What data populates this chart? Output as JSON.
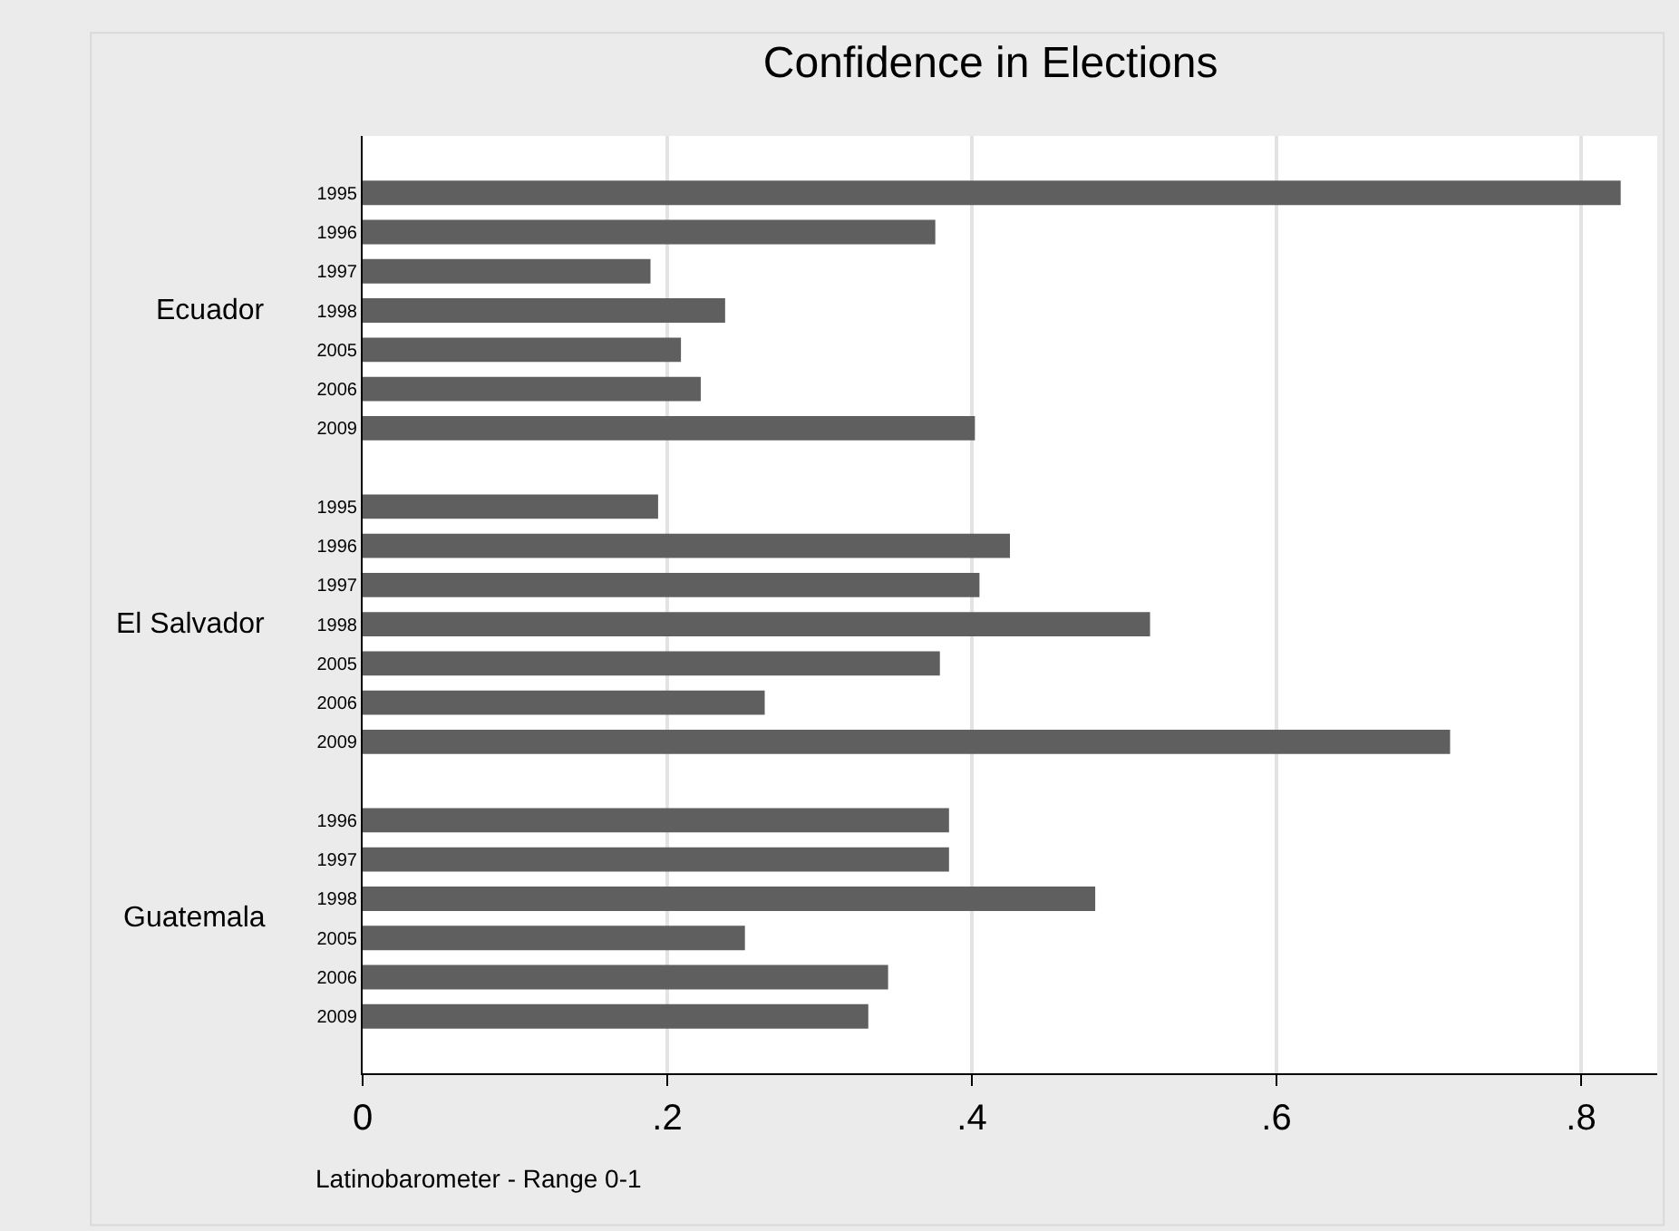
{
  "chart_data": {
    "type": "bar",
    "orientation": "horizontal",
    "title": "Confidence in Elections",
    "xlabel": "Latinobarometer - Range 0-1",
    "categories": [
      "1995",
      "1996",
      "1997",
      "1998",
      "2005",
      "2006",
      "2009",
      null,
      "1995",
      "1996",
      "1997",
      "1998",
      "2005",
      "2006",
      "2009",
      null,
      "1996",
      "1997",
      "1998",
      "2005",
      "2006",
      "2009"
    ],
    "values": [
      0.826,
      0.376,
      0.189,
      0.238,
      0.209,
      0.222,
      0.402,
      null,
      0.194,
      0.425,
      0.405,
      0.517,
      0.379,
      0.264,
      0.714,
      null,
      0.385,
      0.385,
      0.481,
      0.251,
      0.345,
      0.332
    ],
    "color": "#5f5f5f",
    "xlim": [
      0,
      0.85
    ],
    "xticks": [
      {
        "value": 0,
        "label": "0"
      },
      {
        "value": 0.2,
        "label": ".2"
      },
      {
        "value": 0.4,
        "label": ".4"
      },
      {
        "value": 0.6,
        "label": ".6"
      },
      {
        "value": 0.8,
        "label": ".8"
      }
    ],
    "grid": "x",
    "legend": false,
    "annotations": [
      "Ecuador",
      "El Salvador",
      "Guatemala"
    ]
  }
}
